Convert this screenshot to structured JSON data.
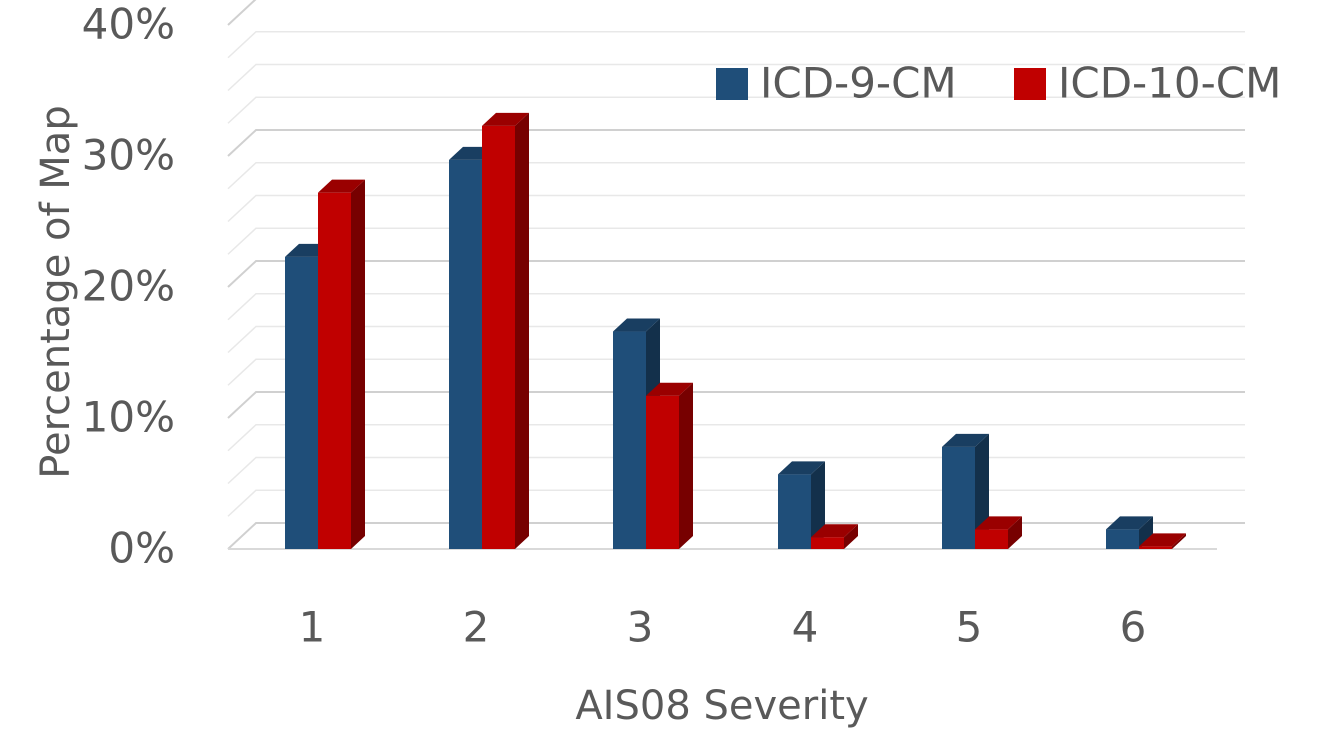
{
  "chart_data": {
    "type": "bar",
    "categories": [
      "1",
      "2",
      "3",
      "4",
      "5",
      "6"
    ],
    "series": [
      {
        "name": "ICD-9-CM",
        "values": [
          22.3,
          29.7,
          16.6,
          5.7,
          7.8,
          1.5
        ],
        "color": "#1f4e79"
      },
      {
        "name": "ICD-10-CM",
        "values": [
          27.2,
          32.3,
          11.7,
          0.9,
          1.5,
          0.2
        ],
        "color": "#c00000"
      }
    ],
    "xlabel": "AIS08 Severity",
    "ylabel": "Percentage of Map",
    "ylim": [
      0,
      40
    ],
    "y_ticks": [
      "0%",
      "10%",
      "20%",
      "30%",
      "40%"
    ],
    "y_tick_values": [
      0,
      10,
      20,
      30,
      40
    ],
    "grid": true,
    "legend_position": "top-right",
    "style": "3d-clustered-column"
  }
}
